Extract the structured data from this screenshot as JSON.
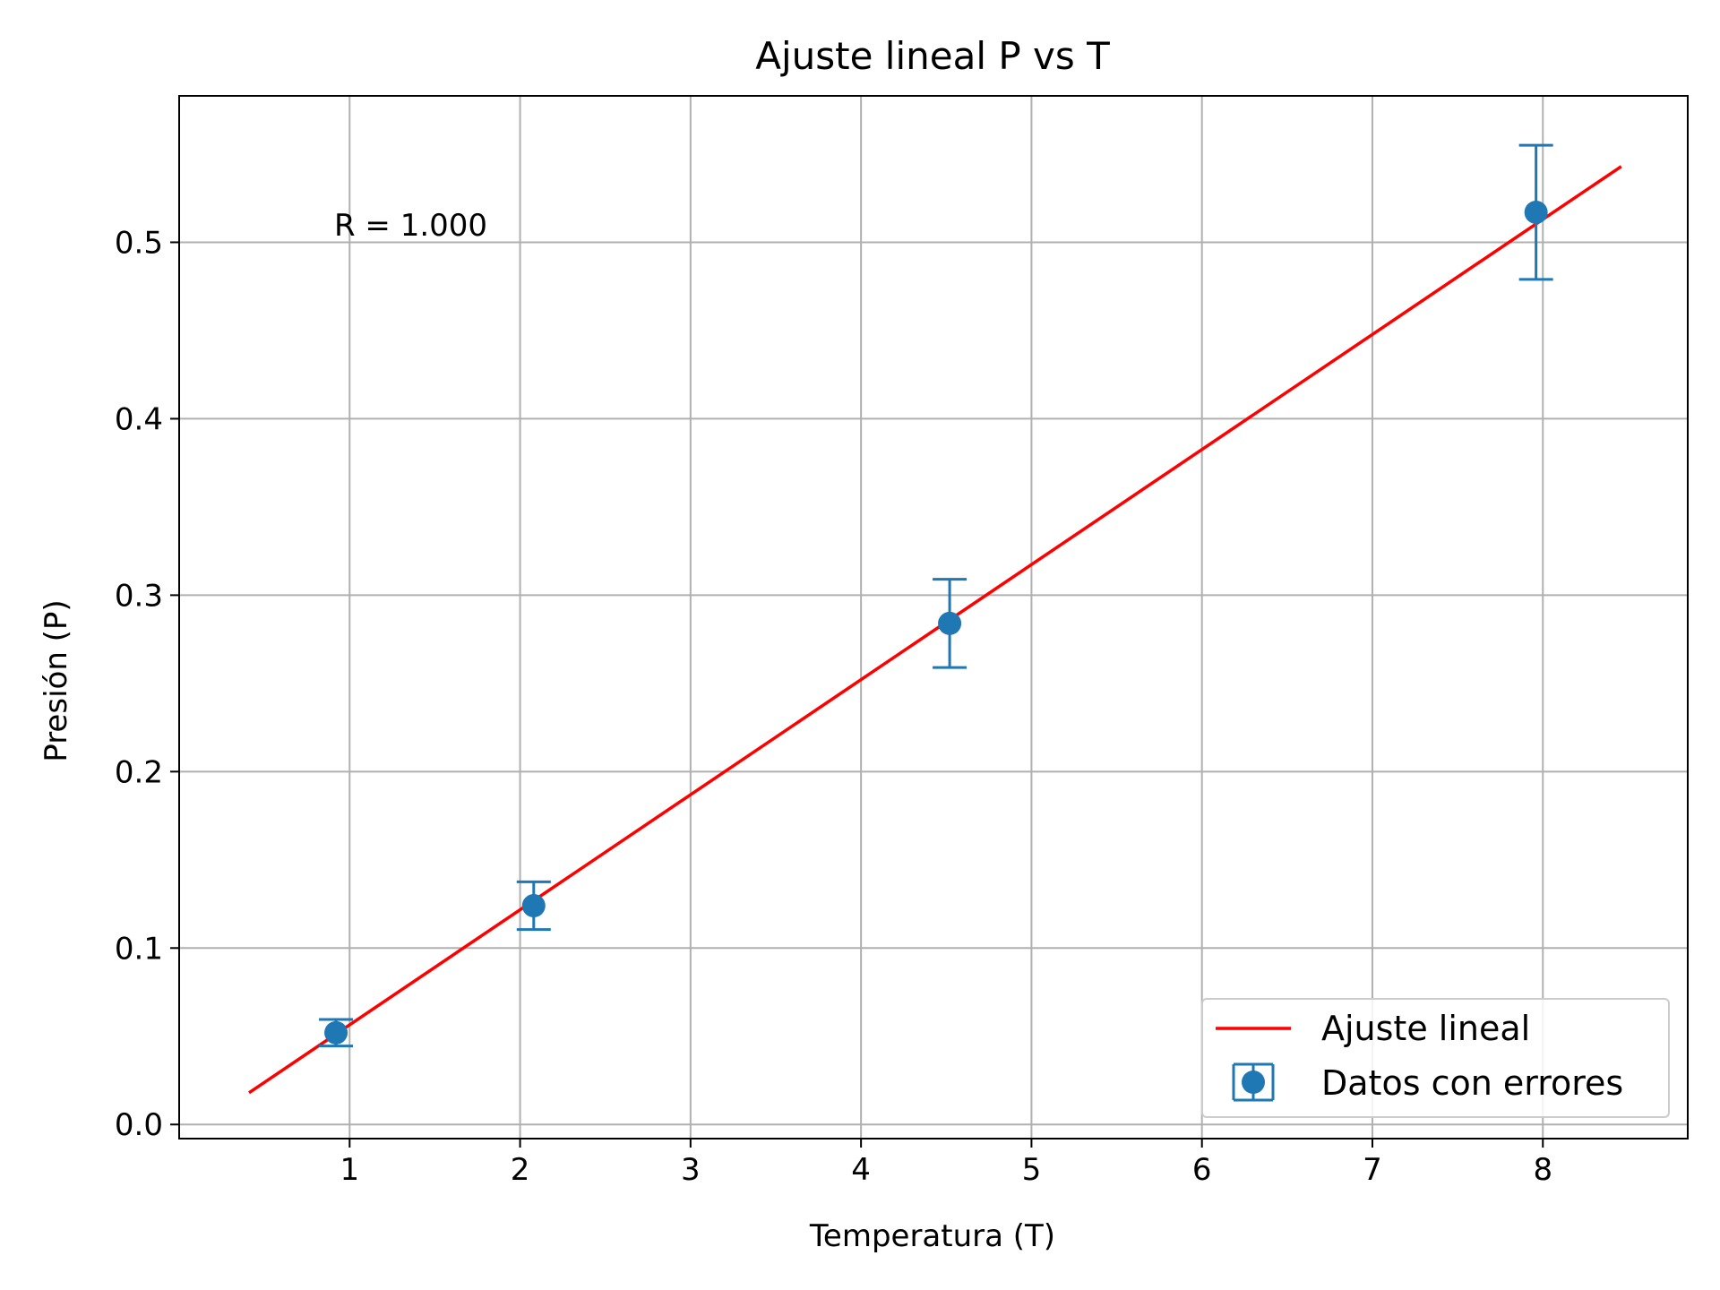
{
  "chart_data": {
    "type": "scatter",
    "title": "Ajuste lineal P vs T",
    "xlabel": "Temperatura (T)",
    "ylabel": "Presión (P)",
    "xlim": [
      0.0,
      8.85
    ],
    "ylim": [
      -0.008,
      0.583
    ],
    "xticks": [
      1,
      2,
      3,
      4,
      5,
      6,
      7,
      8
    ],
    "xtick_labels": [
      "1",
      "2",
      "3",
      "4",
      "5",
      "6",
      "7",
      "8"
    ],
    "yticks": [
      0.0,
      0.1,
      0.2,
      0.3,
      0.4,
      0.5
    ],
    "ytick_labels": [
      "0.0",
      "0.1",
      "0.2",
      "0.3",
      "0.4",
      "0.5"
    ],
    "grid": true,
    "legend_position": "bottom-right",
    "annotation": "R = 1.000",
    "series": [
      {
        "name": "Ajuste lineal",
        "kind": "line",
        "color": "#ff0000",
        "x": [
          0.41,
          8.46
        ],
        "y": [
          0.018,
          0.543
        ]
      },
      {
        "name": "Datos con errores",
        "kind": "errorbar",
        "color": "#1f77b4",
        "x": [
          0.92,
          2.08,
          4.52,
          7.96
        ],
        "y": [
          0.052,
          0.124,
          0.284,
          0.517
        ],
        "yerr": [
          0.0075,
          0.0135,
          0.025,
          0.038
        ]
      }
    ]
  }
}
